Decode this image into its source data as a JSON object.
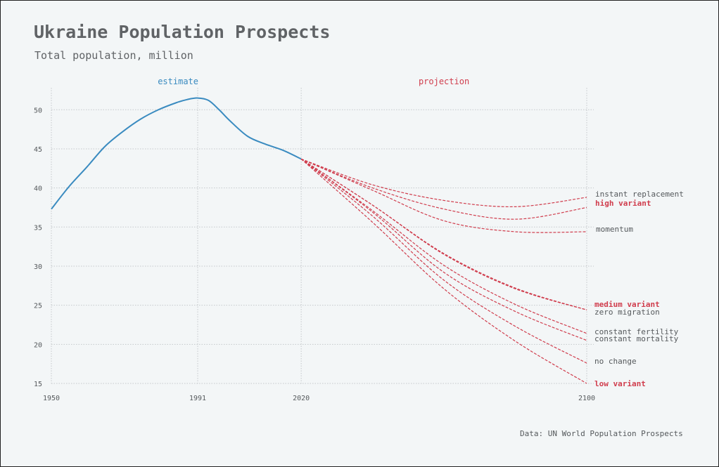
{
  "header": {
    "title": "Ukraine Population Prospects",
    "subtitle": "Total population, million"
  },
  "footer": {
    "source": "Data: UN World Population Prospects"
  },
  "colors": {
    "estimate": "#3a8bc0",
    "projection": "#d03d4d",
    "label_gray": "#55595c",
    "grid": "#c4c8cb",
    "background": "#f3f6f7"
  },
  "chart_data": {
    "type": "line",
    "title": "Ukraine Population Prospects",
    "subtitle": "Total population, million",
    "xlabel": "",
    "ylabel": "",
    "xlim": [
      1950,
      2100
    ],
    "ylim": [
      15,
      52
    ],
    "x_ticks": [
      1950,
      1991,
      2020,
      2100
    ],
    "y_ticks": [
      15,
      20,
      25,
      30,
      35,
      40,
      45,
      50
    ],
    "period_labels": [
      {
        "text": "estimate",
        "x": 1985.5,
        "role": "estimate"
      },
      {
        "text": "projection",
        "x": 2060,
        "role": "projection"
      }
    ],
    "grid": true,
    "estimate": {
      "name": "estimate",
      "x": [
        1950,
        1955,
        1960,
        1965,
        1970,
        1975,
        1980,
        1985,
        1988,
        1991,
        1994,
        1997,
        2000,
        2005,
        2010,
        2015,
        2020
      ],
      "y": [
        37.3,
        40.2,
        42.7,
        45.3,
        47.2,
        48.8,
        50.0,
        50.9,
        51.3,
        51.5,
        51.2,
        50.0,
        48.6,
        46.6,
        45.6,
        44.8,
        43.7
      ]
    },
    "projections": [
      {
        "name": "instant replacement",
        "emphasis": false,
        "x": [
          2020,
          2040,
          2060,
          2080,
          2100
        ],
        "y": [
          43.7,
          40.4,
          38.4,
          37.6,
          38.8
        ]
      },
      {
        "name": "high variant",
        "emphasis": true,
        "x": [
          2020,
          2040,
          2060,
          2080,
          2100
        ],
        "y": [
          43.7,
          40.0,
          37.3,
          36.0,
          37.5
        ]
      },
      {
        "name": "momentum",
        "emphasis": false,
        "x": [
          2020,
          2040,
          2060,
          2080,
          2100
        ],
        "y": [
          43.7,
          39.7,
          35.8,
          34.4,
          34.4
        ]
      },
      {
        "name": "medium variant",
        "emphasis": true,
        "x": [
          2020,
          2040,
          2060,
          2080,
          2100
        ],
        "y": [
          43.7,
          37.8,
          31.6,
          27.2,
          24.4
        ]
      },
      {
        "name": "zero migration",
        "emphasis": false,
        "x": [
          2020,
          2040,
          2060,
          2080,
          2100
        ],
        "y": [
          43.7,
          37.8,
          31.5,
          27.1,
          24.4
        ]
      },
      {
        "name": "constant fertility",
        "emphasis": false,
        "x": [
          2020,
          2040,
          2060,
          2080,
          2100
        ],
        "y": [
          43.7,
          37.1,
          30.1,
          25.1,
          21.4
        ]
      },
      {
        "name": "constant mortality",
        "emphasis": false,
        "x": [
          2020,
          2040,
          2060,
          2080,
          2100
        ],
        "y": [
          43.7,
          36.9,
          29.2,
          24.2,
          20.5
        ]
      },
      {
        "name": "no change",
        "emphasis": false,
        "x": [
          2020,
          2040,
          2060,
          2080,
          2100
        ],
        "y": [
          43.7,
          36.4,
          28.2,
          22.3,
          17.6
        ]
      },
      {
        "name": "low variant",
        "emphasis": true,
        "x": [
          2020,
          2040,
          2060,
          2080,
          2100
        ],
        "y": [
          43.7,
          35.6,
          27.1,
          20.4,
          15.0
        ]
      }
    ]
  }
}
